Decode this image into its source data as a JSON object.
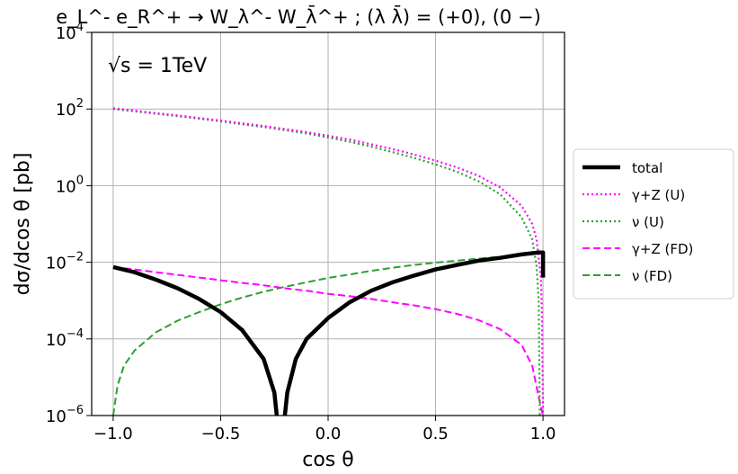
{
  "chart_data": {
    "type": "line",
    "title": "e_L^- e_R^+ → W_λ^- W_λ̄^+ ; (λ λ̄) = (+0), (0 −)",
    "annotation": "√s = 1TeV",
    "xlabel": "cos θ",
    "ylabel": "dσ/dcos θ [pb]",
    "xlim": [
      -1.1,
      1.1
    ],
    "ylim": [
      1e-06,
      10000.0
    ],
    "yscale": "log",
    "grid": true,
    "legend_position": "right, outside plot",
    "x_ticks": [
      {
        "value": -1.0,
        "label": "−1.0"
      },
      {
        "value": -0.5,
        "label": "−0.5"
      },
      {
        "value": 0.0,
        "label": "0.0"
      },
      {
        "value": 0.5,
        "label": "0.5"
      },
      {
        "value": 1.0,
        "label": "1.0"
      }
    ],
    "y_ticks": [
      {
        "value": 1e-06,
        "base": "10",
        "exp": "−6"
      },
      {
        "value": 0.0001,
        "base": "10",
        "exp": "−4"
      },
      {
        "value": 0.01,
        "base": "10",
        "exp": "−2"
      },
      {
        "value": 1.0,
        "base": "10",
        "exp": "0"
      },
      {
        "value": 100.0,
        "base": "10",
        "exp": "2"
      },
      {
        "value": 10000.0,
        "base": "10",
        "exp": "4"
      }
    ],
    "series": [
      {
        "name": "total",
        "color": "#000000",
        "style": "solid",
        "points": [
          [
            -1.0,
            0.0075
          ],
          [
            -0.9,
            0.0055
          ],
          [
            -0.8,
            0.0035
          ],
          [
            -0.7,
            0.0021
          ],
          [
            -0.6,
            0.0011
          ],
          [
            -0.5,
            0.0005
          ],
          [
            -0.4,
            0.00017
          ],
          [
            -0.3,
            3e-05
          ],
          [
            -0.25,
            4e-06
          ],
          [
            -0.22,
            1e-07
          ],
          [
            -0.19,
            4e-06
          ],
          [
            -0.15,
            3e-05
          ],
          [
            -0.1,
            0.0001
          ],
          [
            0.0,
            0.00035
          ],
          [
            0.1,
            0.0009
          ],
          [
            0.2,
            0.0018
          ],
          [
            0.3,
            0.003
          ],
          [
            0.4,
            0.0045
          ],
          [
            0.5,
            0.0065
          ],
          [
            0.6,
            0.0085
          ],
          [
            0.7,
            0.011
          ],
          [
            0.8,
            0.013
          ],
          [
            0.9,
            0.016
          ],
          [
            0.98,
            0.018
          ],
          [
            1.0,
            0.018
          ],
          [
            1.0,
            0.004
          ]
        ]
      },
      {
        "name": "γ+Z (U)",
        "color": "#ff00ff",
        "style": "dotted",
        "points": [
          [
            -1.0,
            105
          ],
          [
            -0.9,
            90
          ],
          [
            -0.8,
            78
          ],
          [
            -0.7,
            68
          ],
          [
            -0.6,
            58
          ],
          [
            -0.5,
            50
          ],
          [
            -0.4,
            42
          ],
          [
            -0.3,
            36
          ],
          [
            -0.2,
            30
          ],
          [
            -0.1,
            25
          ],
          [
            0.0,
            20
          ],
          [
            0.1,
            16
          ],
          [
            0.2,
            12
          ],
          [
            0.3,
            9
          ],
          [
            0.4,
            6.5
          ],
          [
            0.5,
            4.5
          ],
          [
            0.6,
            3.0
          ],
          [
            0.7,
            1.8
          ],
          [
            0.8,
            0.9
          ],
          [
            0.9,
            0.3
          ],
          [
            0.95,
            0.1
          ],
          [
            0.97,
            0.04
          ],
          [
            0.99,
            0.004
          ],
          [
            0.995,
            0.0004
          ],
          [
            1.0,
            1e-06
          ]
        ]
      },
      {
        "name": "ν (U)",
        "color": "#2ca02c",
        "style": "dotted",
        "points": [
          [
            -1.0,
            100
          ],
          [
            -0.9,
            87
          ],
          [
            -0.8,
            75
          ],
          [
            -0.7,
            65
          ],
          [
            -0.6,
            56
          ],
          [
            -0.5,
            48
          ],
          [
            -0.4,
            40
          ],
          [
            -0.3,
            34
          ],
          [
            -0.2,
            28
          ],
          [
            -0.1,
            23
          ],
          [
            0.0,
            18
          ],
          [
            0.1,
            14
          ],
          [
            0.2,
            10.5
          ],
          [
            0.3,
            7.5
          ],
          [
            0.4,
            5.3
          ],
          [
            0.5,
            3.6
          ],
          [
            0.6,
            2.3
          ],
          [
            0.7,
            1.3
          ],
          [
            0.8,
            0.6
          ],
          [
            0.9,
            0.15
          ],
          [
            0.95,
            0.04
          ],
          [
            0.97,
            0.008
          ],
          [
            0.98,
            0.001
          ],
          [
            0.985,
            1e-06
          ]
        ]
      },
      {
        "name": "γ+Z (FD)",
        "color": "#ff00ff",
        "style": "dashed",
        "points": [
          [
            -1.0,
            0.0075
          ],
          [
            -0.9,
            0.0065
          ],
          [
            -0.8,
            0.0055
          ],
          [
            -0.7,
            0.0047
          ],
          [
            -0.6,
            0.004
          ],
          [
            -0.5,
            0.0034
          ],
          [
            -0.4,
            0.0029
          ],
          [
            -0.3,
            0.0025
          ],
          [
            -0.2,
            0.0021
          ],
          [
            -0.1,
            0.0018
          ],
          [
            0.0,
            0.0015
          ],
          [
            0.1,
            0.0013
          ],
          [
            0.2,
            0.0011
          ],
          [
            0.3,
            0.0009
          ],
          [
            0.4,
            0.00075
          ],
          [
            0.5,
            0.0006
          ],
          [
            0.6,
            0.00045
          ],
          [
            0.7,
            0.00031
          ],
          [
            0.8,
            0.00018
          ],
          [
            0.9,
            7e-05
          ],
          [
            0.95,
            2e-05
          ],
          [
            0.98,
            3e-06
          ],
          [
            1.0,
            1e-06
          ]
        ]
      },
      {
        "name": "ν (FD)",
        "color": "#2ca02c",
        "style": "dashed",
        "points": [
          [
            -1.0,
            1e-06
          ],
          [
            -0.98,
            6e-06
          ],
          [
            -0.95,
            2e-05
          ],
          [
            -0.9,
            5e-05
          ],
          [
            -0.8,
            0.00015
          ],
          [
            -0.7,
            0.0003
          ],
          [
            -0.6,
            0.0005
          ],
          [
            -0.5,
            0.0008
          ],
          [
            -0.4,
            0.0012
          ],
          [
            -0.3,
            0.0017
          ],
          [
            -0.2,
            0.0023
          ],
          [
            -0.1,
            0.003
          ],
          [
            0.0,
            0.0039
          ],
          [
            0.1,
            0.0048
          ],
          [
            0.2,
            0.006
          ],
          [
            0.3,
            0.0072
          ],
          [
            0.4,
            0.0085
          ],
          [
            0.5,
            0.0098
          ],
          [
            0.6,
            0.011
          ],
          [
            0.7,
            0.0125
          ],
          [
            0.8,
            0.014
          ],
          [
            0.9,
            0.016
          ],
          [
            0.95,
            0.017
          ],
          [
            0.98,
            0.018
          ],
          [
            1.0,
            0.018
          ],
          [
            1.0,
            0.004
          ]
        ]
      }
    ]
  }
}
